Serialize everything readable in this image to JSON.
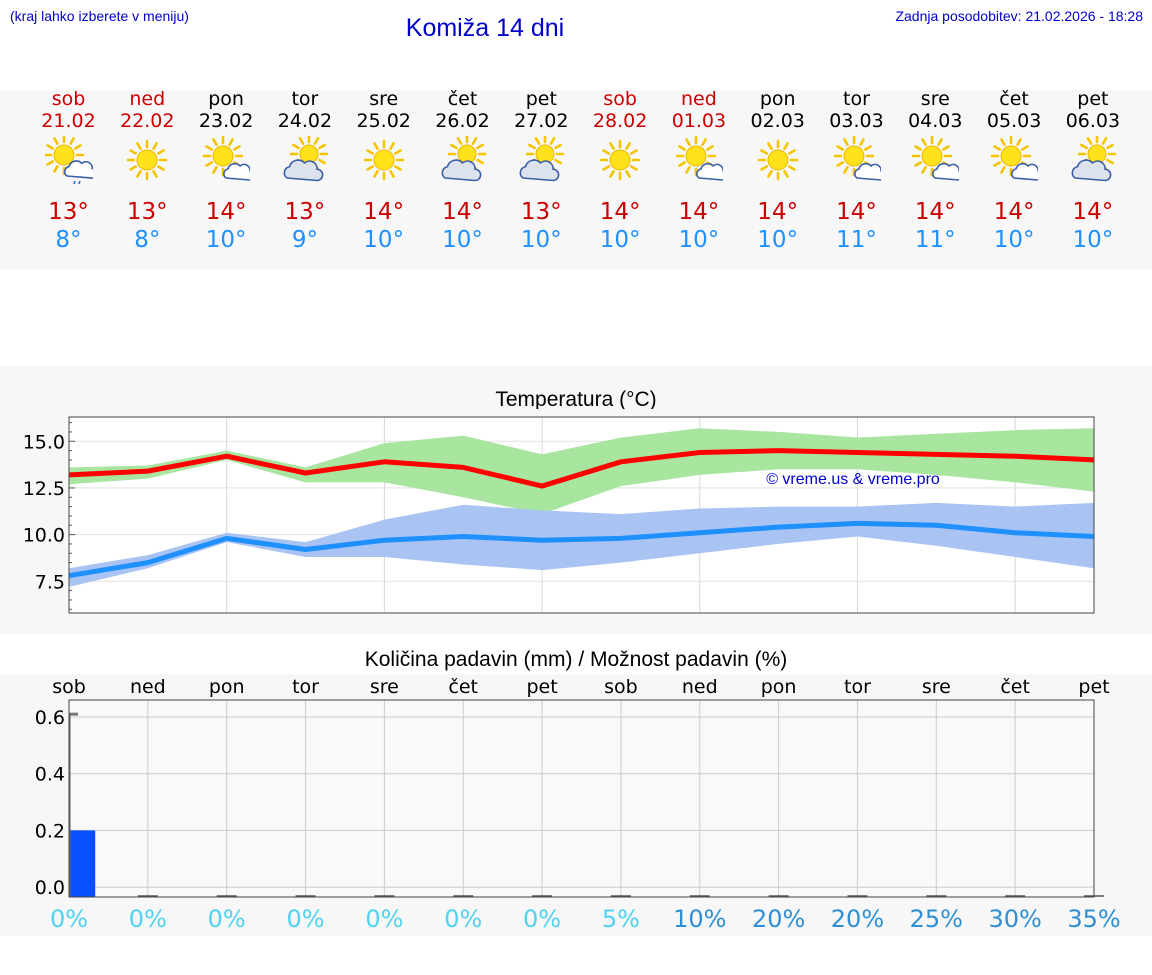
{
  "header": {
    "hint": "(kraj lahko izberete v meniju)",
    "title": "Komiža 14 dni",
    "updated": "Zadnja posodobitev: 21.02.2026 - 18:28"
  },
  "colors": {
    "weekend": "#cc0000",
    "weekday": "#000000",
    "max": "#ff0000",
    "min": "#1e90ff",
    "max_band": "#a8e6a0",
    "min_band": "#a9c4f2",
    "precip_bar": "#0a50ff",
    "prob_low": "#4fd3f0",
    "prob_high": "#2e8fd6"
  },
  "days": [
    {
      "name": "sob",
      "date": "21.02",
      "weekend": true,
      "icon": "sun-cloud-rain-icon",
      "max": "13°",
      "min": "8°"
    },
    {
      "name": "ned",
      "date": "22.02",
      "weekend": true,
      "icon": "sun-icon",
      "max": "13°",
      "min": "8°"
    },
    {
      "name": "pon",
      "date": "23.02",
      "weekend": false,
      "icon": "sun-small-cloud-icon",
      "max": "14°",
      "min": "10°"
    },
    {
      "name": "tor",
      "date": "24.02",
      "weekend": false,
      "icon": "cloud-sun-icon",
      "max": "13°",
      "min": "9°"
    },
    {
      "name": "sre",
      "date": "25.02",
      "weekend": false,
      "icon": "sun-icon",
      "max": "14°",
      "min": "10°"
    },
    {
      "name": "čet",
      "date": "26.02",
      "weekend": false,
      "icon": "cloud-sun-icon",
      "max": "14°",
      "min": "10°"
    },
    {
      "name": "pet",
      "date": "27.02",
      "weekend": false,
      "icon": "cloud-sun-icon",
      "max": "13°",
      "min": "10°"
    },
    {
      "name": "sob",
      "date": "28.02",
      "weekend": true,
      "icon": "sun-icon",
      "max": "14°",
      "min": "10°"
    },
    {
      "name": "ned",
      "date": "01.03",
      "weekend": true,
      "icon": "sun-small-cloud-icon",
      "max": "14°",
      "min": "10°"
    },
    {
      "name": "pon",
      "date": "02.03",
      "weekend": false,
      "icon": "sun-icon",
      "max": "14°",
      "min": "10°"
    },
    {
      "name": "tor",
      "date": "03.03",
      "weekend": false,
      "icon": "sun-small-cloud-icon",
      "max": "14°",
      "min": "11°"
    },
    {
      "name": "sre",
      "date": "04.03",
      "weekend": false,
      "icon": "sun-small-cloud-icon",
      "max": "14°",
      "min": "11°"
    },
    {
      "name": "čet",
      "date": "05.03",
      "weekend": false,
      "icon": "sun-small-cloud-icon",
      "max": "14°",
      "min": "10°"
    },
    {
      "name": "pet",
      "date": "06.03",
      "weekend": false,
      "icon": "cloud-sun-icon",
      "max": "14°",
      "min": "10°"
    }
  ],
  "chart_data": [
    {
      "type": "line",
      "title": "Temperatura (°C)",
      "watermark": "© vreme.us & vreme.pro",
      "ylim": [
        5.8,
        16.3
      ],
      "yticks": [
        7.5,
        10.0,
        12.5,
        15.0
      ],
      "ytick_labels": [
        "7.5",
        "10.0",
        "12.5",
        "15.0"
      ],
      "x": [
        0,
        1,
        2,
        3,
        4,
        5,
        6,
        7,
        8,
        9,
        10,
        11,
        12,
        13
      ],
      "series": [
        {
          "name": "max",
          "values": [
            13.2,
            13.4,
            14.2,
            13.3,
            13.9,
            13.6,
            12.6,
            13.9,
            14.4,
            14.5,
            14.4,
            14.3,
            14.2,
            14.0
          ],
          "band_low": [
            12.7,
            13.0,
            14.0,
            12.8,
            12.8,
            12.0,
            11.1,
            12.6,
            13.2,
            13.5,
            13.5,
            13.2,
            12.8,
            12.3
          ],
          "band_high": [
            13.6,
            13.7,
            14.5,
            13.6,
            14.9,
            15.3,
            14.3,
            15.2,
            15.7,
            15.5,
            15.2,
            15.4,
            15.6,
            15.7
          ]
        },
        {
          "name": "min",
          "values": [
            7.8,
            8.5,
            9.8,
            9.2,
            9.7,
            9.9,
            9.7,
            9.8,
            10.1,
            10.4,
            10.6,
            10.5,
            10.1,
            9.9
          ],
          "band_low": [
            7.2,
            8.2,
            9.6,
            8.8,
            8.8,
            8.4,
            8.1,
            8.5,
            9.0,
            9.5,
            9.9,
            9.4,
            8.8,
            8.2
          ],
          "band_high": [
            8.2,
            8.9,
            10.1,
            9.6,
            10.8,
            11.6,
            11.3,
            11.1,
            11.4,
            11.5,
            11.5,
            11.7,
            11.5,
            11.7
          ]
        }
      ]
    },
    {
      "type": "bar",
      "title": "Količina padavin (mm) / Možnost padavin (%)",
      "categories": [
        "sob",
        "ned",
        "pon",
        "tor",
        "sre",
        "čet",
        "pet",
        "sob",
        "ned",
        "pon",
        "tor",
        "sre",
        "čet",
        "pet"
      ],
      "values": [
        0.2,
        0,
        0,
        0,
        0,
        0,
        0,
        0,
        0,
        0,
        0,
        0,
        0,
        0
      ],
      "ylim": [
        -0.035,
        0.66
      ],
      "yticks": [
        0.0,
        0.2,
        0.4,
        0.6
      ],
      "ytick_labels": [
        "0.0",
        "0.2",
        "0.4",
        "0.6"
      ],
      "probability": [
        "0%",
        "0%",
        "0%",
        "0%",
        "0%",
        "0%",
        "0%",
        "5%",
        "10%",
        "20%",
        "20%",
        "25%",
        "30%",
        "35%"
      ]
    }
  ]
}
